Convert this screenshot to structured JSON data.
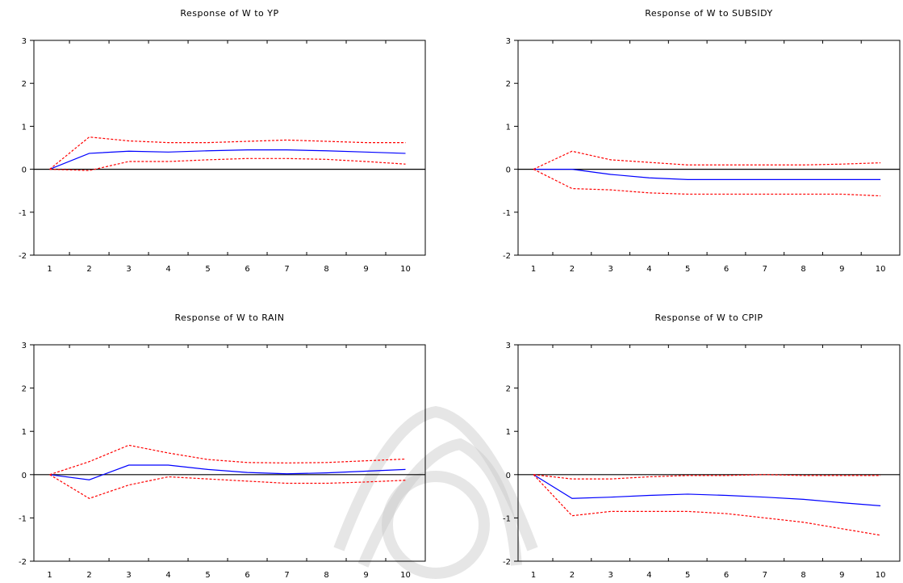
{
  "chart_data": [
    {
      "type": "line",
      "title": "Response of W to YP",
      "xlabel": "",
      "ylabel": "",
      "x": [
        1,
        2,
        3,
        4,
        5,
        6,
        7,
        8,
        9,
        10
      ],
      "xlim": [
        0.6,
        10.5
      ],
      "ylim": [
        -2,
        3
      ],
      "yticks": [
        -2,
        -1,
        0,
        1,
        2,
        3
      ],
      "grid": false,
      "series": [
        {
          "role": "response",
          "color": "#0000ff",
          "dash": "solid",
          "values": [
            0.0,
            0.37,
            0.42,
            0.4,
            0.43,
            0.45,
            0.45,
            0.43,
            0.4,
            0.37
          ]
        },
        {
          "role": "upper",
          "color": "#ff0000",
          "dash": "dashed",
          "values": [
            0.0,
            0.75,
            0.66,
            0.62,
            0.62,
            0.65,
            0.68,
            0.65,
            0.62,
            0.62
          ]
        },
        {
          "role": "lower",
          "color": "#ff0000",
          "dash": "dashed",
          "values": [
            0.0,
            -0.03,
            0.18,
            0.18,
            0.22,
            0.25,
            0.25,
            0.23,
            0.18,
            0.12
          ]
        }
      ]
    },
    {
      "type": "line",
      "title": "Response of W to SUBSIDY",
      "xlabel": "",
      "ylabel": "",
      "x": [
        1,
        2,
        3,
        4,
        5,
        6,
        7,
        8,
        9,
        10
      ],
      "xlim": [
        0.6,
        10.5
      ],
      "ylim": [
        -2,
        3
      ],
      "yticks": [
        -2,
        -1,
        0,
        1,
        2,
        3
      ],
      "grid": false,
      "series": [
        {
          "role": "response",
          "color": "#0000ff",
          "dash": "solid",
          "values": [
            0.0,
            0.0,
            -0.12,
            -0.2,
            -0.24,
            -0.24,
            -0.24,
            -0.24,
            -0.24,
            -0.24
          ]
        },
        {
          "role": "upper",
          "color": "#ff0000",
          "dash": "dashed",
          "values": [
            0.0,
            0.42,
            0.22,
            0.16,
            0.1,
            0.1,
            0.1,
            0.1,
            0.12,
            0.15
          ]
        },
        {
          "role": "lower",
          "color": "#ff0000",
          "dash": "dashed",
          "values": [
            0.0,
            -0.45,
            -0.48,
            -0.55,
            -0.58,
            -0.58,
            -0.58,
            -0.58,
            -0.58,
            -0.62
          ]
        }
      ]
    },
    {
      "type": "line",
      "title": "Response of W to RAIN",
      "xlabel": "",
      "ylabel": "",
      "x": [
        1,
        2,
        3,
        4,
        5,
        6,
        7,
        8,
        9,
        10
      ],
      "xlim": [
        0.6,
        10.5
      ],
      "ylim": [
        -2,
        3
      ],
      "yticks": [
        -2,
        -1,
        0,
        1,
        2,
        3
      ],
      "grid": false,
      "series": [
        {
          "role": "response",
          "color": "#0000ff",
          "dash": "solid",
          "values": [
            0.0,
            -0.12,
            0.22,
            0.22,
            0.12,
            0.05,
            0.02,
            0.04,
            0.08,
            0.12
          ]
        },
        {
          "role": "upper",
          "color": "#ff0000",
          "dash": "dashed",
          "values": [
            0.0,
            0.3,
            0.68,
            0.5,
            0.35,
            0.28,
            0.27,
            0.28,
            0.32,
            0.36
          ]
        },
        {
          "role": "lower",
          "color": "#ff0000",
          "dash": "dashed",
          "values": [
            0.0,
            -0.55,
            -0.24,
            -0.05,
            -0.1,
            -0.15,
            -0.2,
            -0.2,
            -0.17,
            -0.13
          ]
        }
      ]
    },
    {
      "type": "line",
      "title": "Response of W to CPIP",
      "xlabel": "",
      "ylabel": "",
      "x": [
        1,
        2,
        3,
        4,
        5,
        6,
        7,
        8,
        9,
        10
      ],
      "xlim": [
        0.6,
        10.5
      ],
      "ylim": [
        -2,
        3
      ],
      "yticks": [
        -2,
        -1,
        0,
        1,
        2,
        3
      ],
      "grid": false,
      "series": [
        {
          "role": "response",
          "color": "#0000ff",
          "dash": "solid",
          "values": [
            0.0,
            -0.55,
            -0.52,
            -0.48,
            -0.45,
            -0.48,
            -0.52,
            -0.57,
            -0.65,
            -0.72
          ]
        },
        {
          "role": "upper",
          "color": "#ff0000",
          "dash": "dashed",
          "values": [
            0.0,
            -0.1,
            -0.1,
            -0.05,
            -0.02,
            -0.02,
            0.0,
            -0.02,
            -0.02,
            -0.02
          ]
        },
        {
          "role": "lower",
          "color": "#ff0000",
          "dash": "dashed",
          "values": [
            0.0,
            -0.95,
            -0.85,
            -0.85,
            -0.85,
            -0.9,
            -1.0,
            -1.1,
            -1.25,
            -1.4
          ]
        }
      ]
    }
  ]
}
